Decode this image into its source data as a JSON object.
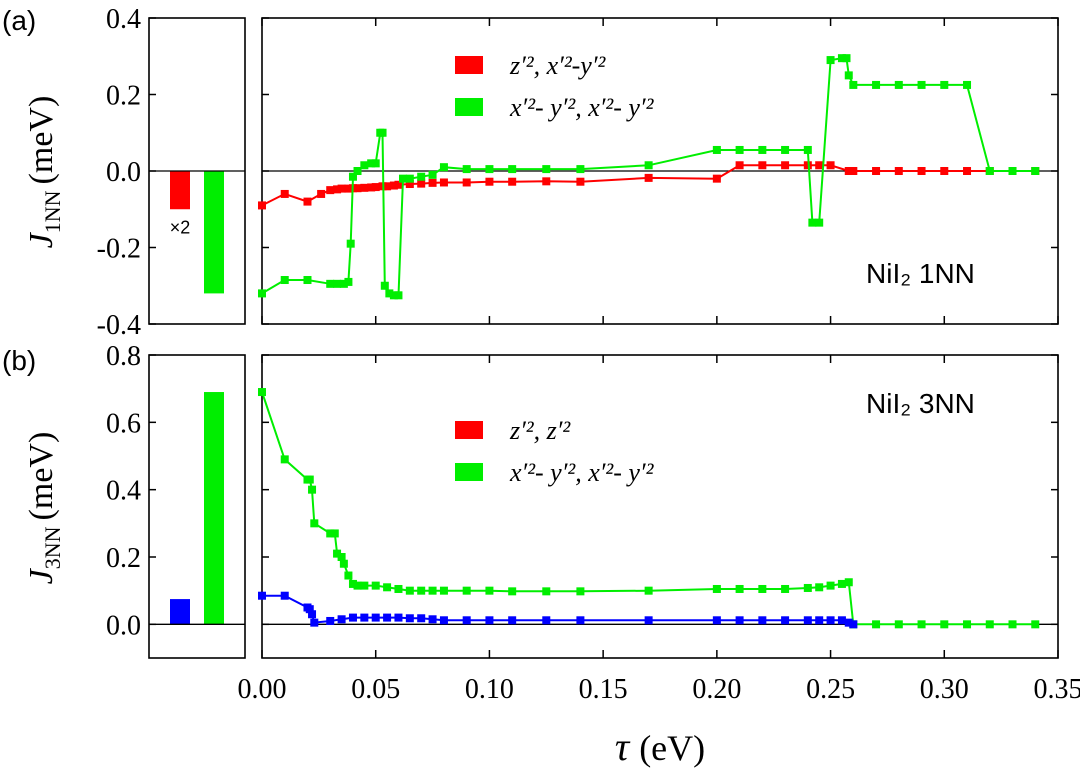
{
  "chart_data": [
    {
      "type": "line",
      "panel_label": "(a)",
      "title": "NiI₂ 1NN",
      "ylabel_main": "J",
      "ylabel_sub": "1NN",
      "ylabel_unit": "(meV)",
      "xlabel_main": "τ",
      "xlabel_unit": "(eV)",
      "xlim": [
        0,
        0.35
      ],
      "ylim": [
        -0.4,
        0.4
      ],
      "yticks": [
        "0.4",
        "0.2",
        "0.0",
        "-0.2",
        "-0.4"
      ],
      "ytick_values": [
        0.4,
        0.2,
        0.0,
        -0.2,
        -0.4
      ],
      "bars": [
        {
          "value": -0.1,
          "color": "#ff0000",
          "label": "×2"
        },
        {
          "value": -0.32,
          "color": "#00ee00",
          "label": ""
        }
      ],
      "legend": [
        {
          "label": "z′², x′²-y′²",
          "color": "#ff0000"
        },
        {
          "label": "x′²- y′², x′²- y′²",
          "color": "#00ee00"
        }
      ],
      "series": [
        {
          "name": "red",
          "color": "#ff0000",
          "x": [
            0,
            0.01,
            0.02,
            0.026,
            0.03,
            0.033,
            0.035,
            0.038,
            0.04,
            0.042,
            0.045,
            0.048,
            0.05,
            0.053,
            0.055,
            0.058,
            0.06,
            0.065,
            0.07,
            0.075,
            0.08,
            0.09,
            0.1,
            0.11,
            0.125,
            0.14,
            0.17,
            0.2,
            0.21,
            0.22,
            0.23,
            0.24,
            0.245,
            0.25,
            0.258,
            0.26,
            0.27,
            0.28,
            0.29,
            0.3,
            0.31,
            0.32,
            0.33,
            0.34
          ],
          "y": [
            -0.09,
            -0.06,
            -0.08,
            -0.06,
            -0.05,
            -0.048,
            -0.046,
            -0.046,
            -0.045,
            -0.045,
            -0.044,
            -0.043,
            -0.042,
            -0.04,
            -0.04,
            -0.038,
            -0.036,
            -0.034,
            -0.033,
            -0.031,
            -0.03,
            -0.03,
            -0.028,
            -0.028,
            -0.027,
            -0.028,
            -0.018,
            -0.02,
            0.015,
            0.015,
            0.015,
            0.015,
            0.015,
            0.015,
            0.0,
            0.0,
            0.0,
            0.0,
            0.0,
            0.0,
            0.0,
            0.0,
            0.0,
            0.0
          ]
        },
        {
          "name": "green",
          "color": "#00ee00",
          "x": [
            0,
            0.01,
            0.02,
            0.03,
            0.033,
            0.036,
            0.038,
            0.039,
            0.04,
            0.042,
            0.045,
            0.048,
            0.05,
            0.052,
            0.053,
            0.054,
            0.056,
            0.058,
            0.06,
            0.062,
            0.065,
            0.07,
            0.075,
            0.08,
            0.09,
            0.1,
            0.11,
            0.125,
            0.14,
            0.17,
            0.2,
            0.21,
            0.22,
            0.23,
            0.24,
            0.242,
            0.245,
            0.25,
            0.255,
            0.257,
            0.258,
            0.26,
            0.27,
            0.28,
            0.29,
            0.3,
            0.31,
            0.32,
            0.33,
            0.34
          ],
          "y": [
            -0.32,
            -0.285,
            -0.285,
            -0.295,
            -0.295,
            -0.295,
            -0.29,
            -0.19,
            -0.015,
            0.0,
            0.015,
            0.02,
            0.02,
            0.1,
            0.1,
            -0.3,
            -0.32,
            -0.325,
            -0.325,
            -0.02,
            -0.02,
            -0.015,
            -0.01,
            0.01,
            0.005,
            0.005,
            0.005,
            0.005,
            0.005,
            0.015,
            0.055,
            0.055,
            0.055,
            0.055,
            0.055,
            -0.135,
            -0.135,
            0.29,
            0.295,
            0.295,
            0.25,
            0.225,
            0.225,
            0.225,
            0.225,
            0.225,
            0.225,
            0.0,
            0.0,
            0.0
          ]
        }
      ]
    },
    {
      "type": "line",
      "panel_label": "(b)",
      "title": "NiI₂ 3NN",
      "ylabel_main": "J",
      "ylabel_sub": "3NN",
      "ylabel_unit": "(meV)",
      "xlabel_main": "τ",
      "xlabel_unit": "(eV)",
      "xlim": [
        0,
        0.35
      ],
      "ylim": [
        -0.1,
        0.8
      ],
      "yticks": [
        "0.8",
        "0.6",
        "0.4",
        "0.2",
        "0.0"
      ],
      "ytick_values": [
        0.8,
        0.6,
        0.4,
        0.2,
        0.0
      ],
      "xticks": [
        "0.00",
        "0.05",
        "0.10",
        "0.15",
        "0.20",
        "0.25",
        "0.30",
        "0.35"
      ],
      "xtick_values": [
        0.0,
        0.05,
        0.1,
        0.15,
        0.2,
        0.25,
        0.3,
        0.35
      ],
      "bars": [
        {
          "value": 0.075,
          "color": "#0000ff",
          "label": ""
        },
        {
          "value": 0.69,
          "color": "#00ee00",
          "label": ""
        }
      ],
      "legend": [
        {
          "label": "z′², z′²",
          "color": "#ff0000"
        },
        {
          "label": "x′²- y′², x′²- y′²",
          "color": "#00ee00"
        }
      ],
      "series": [
        {
          "name": "green",
          "color": "#00ee00",
          "x": [
            0,
            0.01,
            0.02,
            0.021,
            0.022,
            0.023,
            0.03,
            0.032,
            0.033,
            0.035,
            0.036,
            0.038,
            0.04,
            0.042,
            0.045,
            0.05,
            0.055,
            0.06,
            0.065,
            0.07,
            0.075,
            0.08,
            0.09,
            0.1,
            0.11,
            0.125,
            0.14,
            0.17,
            0.2,
            0.21,
            0.22,
            0.23,
            0.24,
            0.245,
            0.25,
            0.255,
            0.258,
            0.26,
            0.27,
            0.28,
            0.29,
            0.3,
            0.31,
            0.32,
            0.33,
            0.34
          ],
          "y": [
            0.69,
            0.49,
            0.43,
            0.43,
            0.4,
            0.3,
            0.27,
            0.27,
            0.21,
            0.2,
            0.18,
            0.145,
            0.12,
            0.115,
            0.115,
            0.115,
            0.11,
            0.105,
            0.1,
            0.1,
            0.1,
            0.1,
            0.1,
            0.1,
            0.098,
            0.098,
            0.098,
            0.1,
            0.105,
            0.105,
            0.105,
            0.105,
            0.108,
            0.11,
            0.115,
            0.12,
            0.125,
            0.0,
            0.0,
            0.0,
            0.0,
            0.0,
            0.0,
            0.0,
            0.0,
            0.0
          ]
        },
        {
          "name": "blue",
          "color": "#0000ff",
          "x": [
            0,
            0.01,
            0.02,
            0.021,
            0.022,
            0.023,
            0.03,
            0.035,
            0.04,
            0.045,
            0.05,
            0.055,
            0.06,
            0.065,
            0.07,
            0.075,
            0.08,
            0.09,
            0.1,
            0.11,
            0.125,
            0.14,
            0.17,
            0.2,
            0.21,
            0.22,
            0.23,
            0.24,
            0.245,
            0.25,
            0.255,
            0.258,
            0.26
          ],
          "y": [
            0.085,
            0.085,
            0.05,
            0.045,
            0.03,
            0.005,
            0.01,
            0.015,
            0.02,
            0.02,
            0.02,
            0.02,
            0.02,
            0.018,
            0.018,
            0.015,
            0.012,
            0.012,
            0.012,
            0.012,
            0.012,
            0.012,
            0.012,
            0.012,
            0.012,
            0.012,
            0.012,
            0.012,
            0.012,
            0.012,
            0.012,
            0.005,
            0.0
          ]
        }
      ]
    }
  ]
}
